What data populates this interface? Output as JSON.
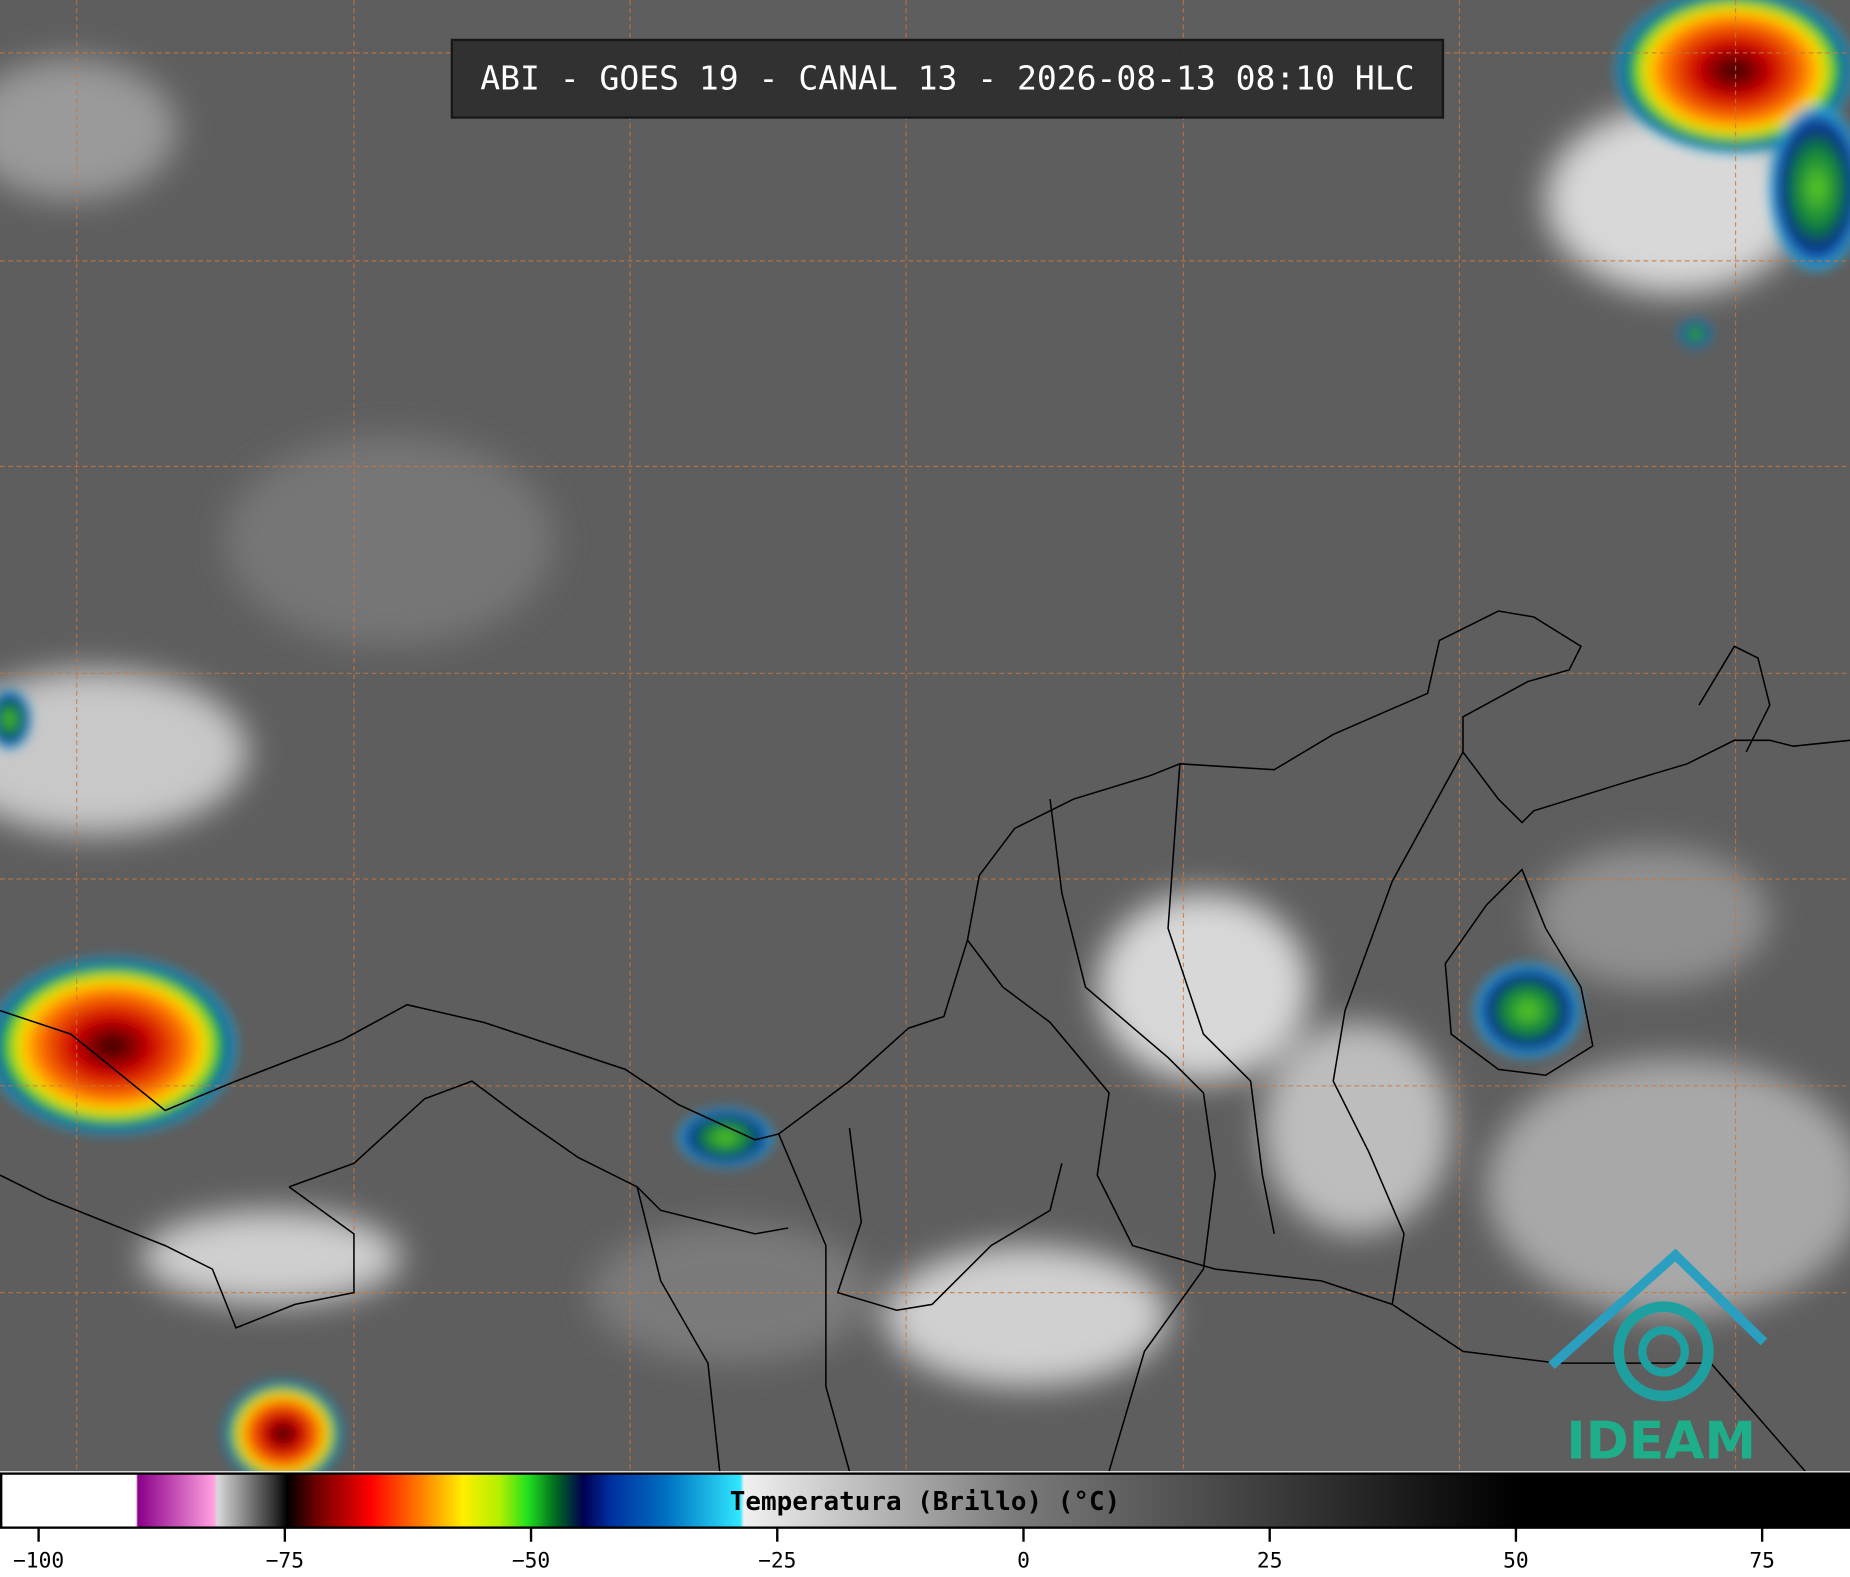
{
  "title": "ABI - GOES 19 - CANAL 13 - 2026-08-13 08:10 HLC",
  "logo": "IDEAM",
  "colorbar": {
    "label": "Temperatura (Brillo) (°C)",
    "lim": [
      -103.8,
      83.8
    ],
    "ticks": [
      {
        "value": -100,
        "label": "−100"
      },
      {
        "value": -75,
        "label": "−75"
      },
      {
        "value": -50,
        "label": "−50"
      },
      {
        "value": -25,
        "label": "−25"
      },
      0,
      25,
      50,
      75
    ]
  }
}
